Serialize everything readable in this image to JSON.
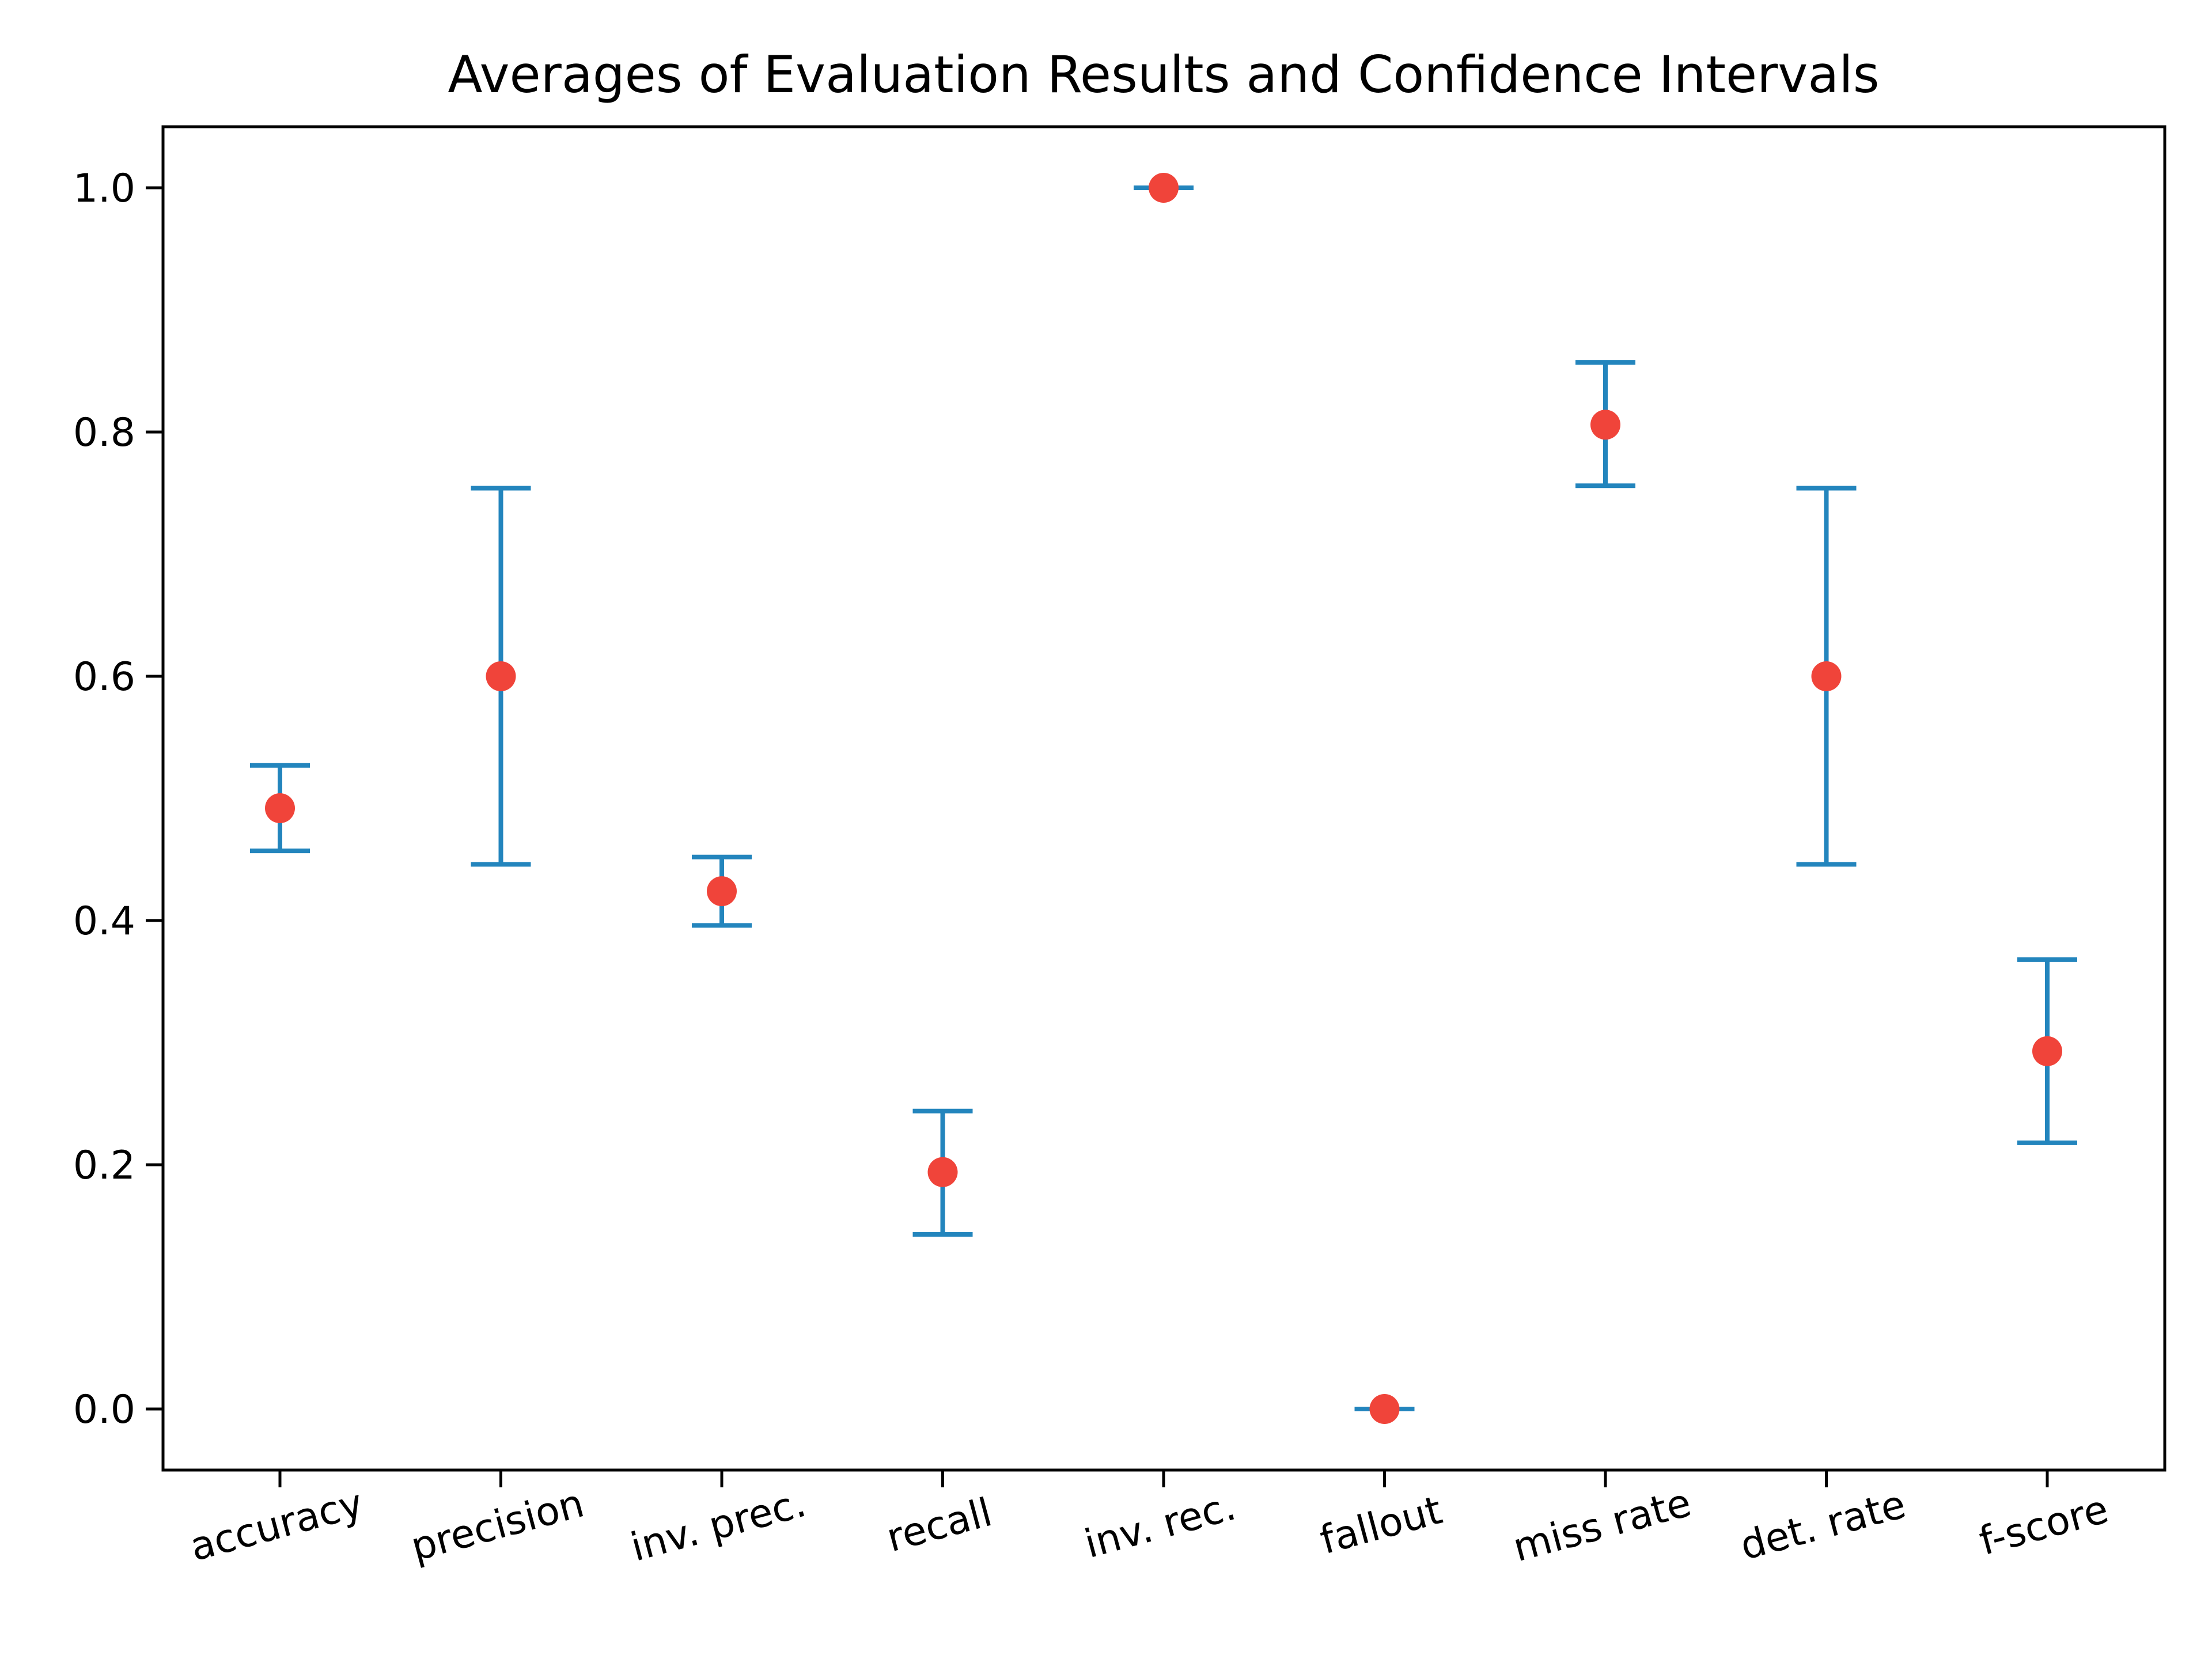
{
  "chart_data": {
    "type": "scatter",
    "title": "Averages of Evaluation Results and Confidence Intervals",
    "xlabel": "",
    "ylabel": "",
    "categories": [
      "accuracy",
      "precision",
      "inv. prec.",
      "recall",
      "inv. rec.",
      "fallout",
      "miss rate",
      "det. rate",
      "f-score"
    ],
    "means": [
      0.492,
      0.6,
      0.424,
      0.194,
      1.0,
      0.0,
      0.806,
      0.6,
      0.293
    ],
    "ci_lower": [
      0.457,
      0.446,
      0.396,
      0.143,
      1.0,
      0.0,
      0.756,
      0.446,
      0.218
    ],
    "ci_upper": [
      0.527,
      0.754,
      0.452,
      0.244,
      1.0,
      0.0,
      0.857,
      0.754,
      0.368
    ],
    "ylim": [
      -0.05,
      1.05
    ],
    "yticks": [
      0.0,
      0.2,
      0.4,
      0.6,
      0.8,
      1.0
    ],
    "ytick_labels": [
      "0.0",
      "0.2",
      "0.4",
      "0.6",
      "0.8",
      "1.0"
    ],
    "xtick_rotation_deg": 15,
    "grid": false,
    "legend": "none",
    "colors": {
      "errorbar": "#2385bd",
      "mean_point": "#f0443a"
    }
  }
}
